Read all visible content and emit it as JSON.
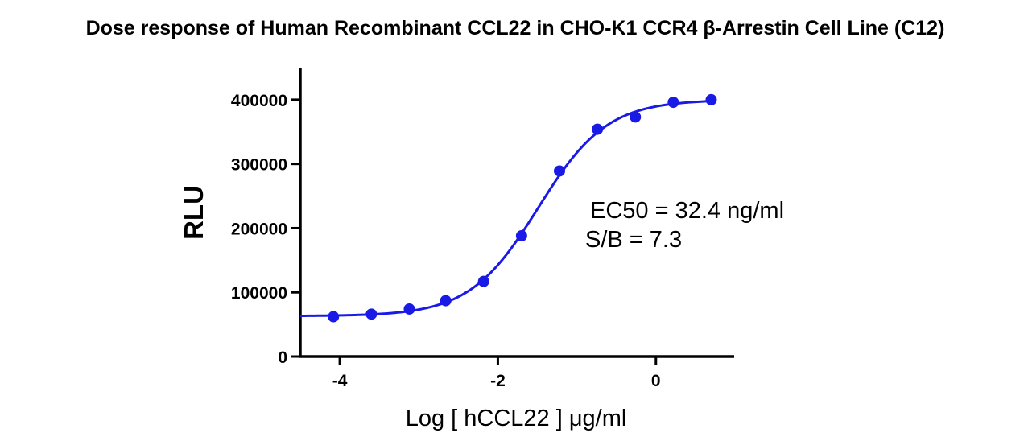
{
  "chart_data": {
    "type": "scatter",
    "title": "Dose response of Human Recombinant CCL22 in CHO-K1 CCR4 β-Arrestin Cell Line (C12)",
    "xlabel": "Log [ hCCL22 ] μg/ml",
    "ylabel": "RLU",
    "xlim": [
      -4.5,
      0.97
    ],
    "ylim": [
      0,
      450000
    ],
    "x_ticks": [
      -4,
      -2,
      0
    ],
    "x_tick_labels": [
      "-4",
      "-2",
      "0"
    ],
    "y_ticks": [
      0,
      100000,
      200000,
      300000,
      400000
    ],
    "y_tick_labels": [
      "0",
      "100000",
      "200000",
      "300000",
      "400000"
    ],
    "grid": false,
    "series": [
      {
        "points": [
          {
            "x": -4.08,
            "y": 62000
          },
          {
            "x": -3.6,
            "y": 66000
          },
          {
            "x": -3.12,
            "y": 74000
          },
          {
            "x": -2.66,
            "y": 87000
          },
          {
            "x": -2.18,
            "y": 117000
          },
          {
            "x": -1.7,
            "y": 188000
          },
          {
            "x": -1.22,
            "y": 289000
          },
          {
            "x": -0.74,
            "y": 354000
          },
          {
            "x": -0.26,
            "y": 373000
          },
          {
            "x": 0.22,
            "y": 396000
          },
          {
            "x": 0.7,
            "y": 400000
          }
        ],
        "color": "#1a1ae6"
      }
    ],
    "fit": {
      "model": "four-parameter logistic",
      "bottom": 63000,
      "top": 400000,
      "log_ec50": -1.49,
      "hill_slope": 1.0,
      "color": "#1a1ae6"
    },
    "annotations": {
      "ec50": "EC50 = 32.4 ng/ml",
      "sb": "S/B = 7.3"
    }
  }
}
